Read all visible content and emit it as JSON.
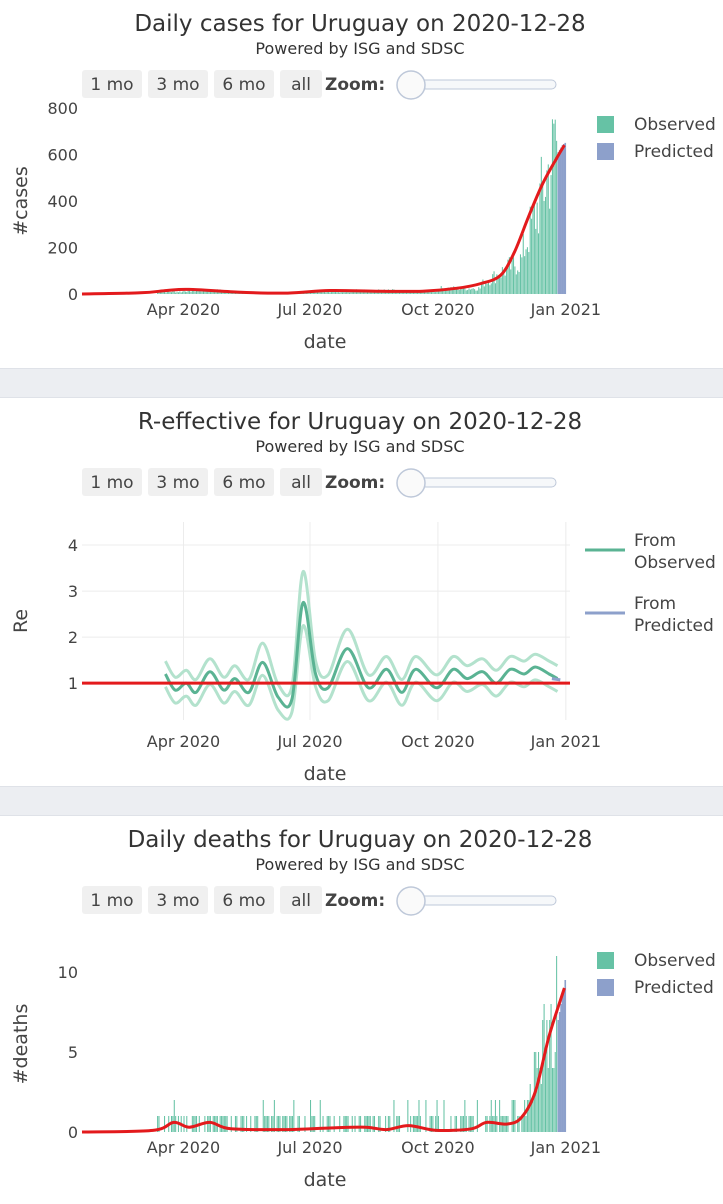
{
  "controls": {
    "buttons": [
      "1 mo",
      "3 mo",
      "6 mo",
      "all"
    ],
    "zoom_label": "Zoom:"
  },
  "colors": {
    "observed": "#66c2a5",
    "predicted": "#8da0cb",
    "fit": "#e31a1c",
    "band": "#b3e2cd",
    "re_line": "#5ab393",
    "grid": "#ececec",
    "button_bg": "#f0f0f0"
  },
  "chart_data": [
    {
      "type": "bar",
      "title": "Daily cases for Uruguay on 2020-12-28",
      "subtitle": "Powered by ISG and SDSC",
      "xlabel": "date",
      "ylabel": "#cases",
      "x_ticks": [
        "Apr 2020",
        "Jul 2020",
        "Oct 2020",
        "Jan 2021"
      ],
      "y_ticks": [
        "0",
        "200",
        "400",
        "600",
        "800"
      ],
      "xlim": [
        "2020-01-19",
        "2021-01-04"
      ],
      "ylim": [
        0,
        800
      ],
      "legend": {
        "position": "right",
        "entries": [
          "Observed",
          "Predicted"
        ]
      },
      "grid": false,
      "observed_months": [
        {
          "month": "2020-03",
          "avg": 10
        },
        {
          "month": "2020-04",
          "avg": 15
        },
        {
          "month": "2020-05",
          "avg": 6
        },
        {
          "month": "2020-06",
          "avg": 4
        },
        {
          "month": "2020-07",
          "avg": 12
        },
        {
          "month": "2020-08",
          "avg": 15
        },
        {
          "month": "2020-09",
          "avg": 12
        },
        {
          "month": "2020-10",
          "avg": 25
        },
        {
          "month": "2020-11",
          "avg": 75
        },
        {
          "month": "2020-12-first-half",
          "avg": 330
        },
        {
          "month": "2020-12-second-half",
          "avg": 600
        }
      ],
      "observed_peak": {
        "date": "2020-12-24",
        "value": 750
      },
      "predicted_range": {
        "from": "2020-12-26",
        "to": "2020-12-31",
        "values": [
          610,
          620,
          630,
          640,
          645,
          650
        ]
      },
      "fit_points": [
        {
          "date": "2020-01-19",
          "value": 0
        },
        {
          "date": "2020-03-01",
          "value": 5
        },
        {
          "date": "2020-03-20",
          "value": 15
        },
        {
          "date": "2020-04-05",
          "value": 20
        },
        {
          "date": "2020-05-10",
          "value": 8
        },
        {
          "date": "2020-06-15",
          "value": 4
        },
        {
          "date": "2020-07-15",
          "value": 15
        },
        {
          "date": "2020-08-20",
          "value": 12
        },
        {
          "date": "2020-09-20",
          "value": 12
        },
        {
          "date": "2020-10-15",
          "value": 25
        },
        {
          "date": "2020-11-01",
          "value": 45
        },
        {
          "date": "2020-11-15",
          "value": 80
        },
        {
          "date": "2020-11-25",
          "value": 180
        },
        {
          "date": "2020-12-05",
          "value": 330
        },
        {
          "date": "2020-12-15",
          "value": 470
        },
        {
          "date": "2020-12-25",
          "value": 580
        },
        {
          "date": "2020-12-31",
          "value": 640
        }
      ]
    },
    {
      "type": "line",
      "title": "R-effective for Uruguay on 2020-12-28",
      "subtitle": "Powered by ISG and SDSC",
      "xlabel": "date",
      "ylabel": "Re",
      "x_ticks": [
        "Apr 2020",
        "Jul 2020",
        "Oct 2020",
        "Jan 2021"
      ],
      "y_ticks": [
        "1",
        "2",
        "3",
        "4"
      ],
      "xlim": [
        "2020-01-19",
        "2021-01-04"
      ],
      "ylim": [
        0.2,
        4.5
      ],
      "reference_line": 1,
      "legend": {
        "position": "right",
        "entries": [
          "From Observed",
          "From Predicted"
        ]
      },
      "grid": true,
      "re_mean": [
        {
          "date": "2020-03-19",
          "value": 1.2
        },
        {
          "date": "2020-03-26",
          "value": 0.85
        },
        {
          "date": "2020-04-03",
          "value": 1.0
        },
        {
          "date": "2020-04-10",
          "value": 0.8
        },
        {
          "date": "2020-04-20",
          "value": 1.25
        },
        {
          "date": "2020-04-30",
          "value": 0.85
        },
        {
          "date": "2020-05-08",
          "value": 1.1
        },
        {
          "date": "2020-05-18",
          "value": 0.8
        },
        {
          "date": "2020-05-28",
          "value": 1.45
        },
        {
          "date": "2020-06-08",
          "value": 0.7
        },
        {
          "date": "2020-06-18",
          "value": 0.65
        },
        {
          "date": "2020-06-26",
          "value": 2.75
        },
        {
          "date": "2020-07-05",
          "value": 1.2
        },
        {
          "date": "2020-07-14",
          "value": 0.9
        },
        {
          "date": "2020-07-28",
          "value": 1.75
        },
        {
          "date": "2020-08-12",
          "value": 0.9
        },
        {
          "date": "2020-08-25",
          "value": 1.3
        },
        {
          "date": "2020-09-05",
          "value": 0.8
        },
        {
          "date": "2020-09-15",
          "value": 1.3
        },
        {
          "date": "2020-09-30",
          "value": 0.9
        },
        {
          "date": "2020-10-12",
          "value": 1.3
        },
        {
          "date": "2020-10-22",
          "value": 1.1
        },
        {
          "date": "2020-11-02",
          "value": 1.25
        },
        {
          "date": "2020-11-12",
          "value": 1.0
        },
        {
          "date": "2020-11-22",
          "value": 1.3
        },
        {
          "date": "2020-12-02",
          "value": 1.2
        },
        {
          "date": "2020-12-10",
          "value": 1.35
        },
        {
          "date": "2020-12-20",
          "value": 1.2
        },
        {
          "date": "2020-12-26",
          "value": 1.1
        }
      ],
      "band_half_width": 0.28,
      "predicted_segment": [
        {
          "date": "2020-12-22",
          "value": 1.1
        },
        {
          "date": "2020-12-28",
          "value": 1.07
        }
      ]
    },
    {
      "type": "bar",
      "title": "Daily deaths for Uruguay on 2020-12-28",
      "subtitle": "Powered by ISG and SDSC",
      "xlabel": "date",
      "ylabel": "#deaths",
      "x_ticks": [
        "Apr 2020",
        "Jul 2020",
        "Oct 2020",
        "Jan 2021"
      ],
      "y_ticks": [
        "0",
        "5",
        "10"
      ],
      "xlim": [
        "2020-01-19",
        "2021-01-04"
      ],
      "ylim": [
        0,
        11
      ],
      "legend": {
        "position": "right",
        "entries": [
          "Observed",
          "Predicted"
        ]
      },
      "grid": false,
      "observed_peak": {
        "date": "2020-12-25",
        "value": 11
      },
      "predicted_range": {
        "from": "2020-12-26",
        "to": "2020-12-31",
        "values": [
          7,
          7.5,
          8,
          8.5,
          9,
          9.5
        ]
      },
      "fit_points": [
        {
          "date": "2020-01-19",
          "value": 0
        },
        {
          "date": "2020-03-10",
          "value": 0.1
        },
        {
          "date": "2020-03-25",
          "value": 0.6
        },
        {
          "date": "2020-04-05",
          "value": 0.3
        },
        {
          "date": "2020-04-20",
          "value": 0.6
        },
        {
          "date": "2020-05-05",
          "value": 0.2
        },
        {
          "date": "2020-06-15",
          "value": 0.15
        },
        {
          "date": "2020-07-15",
          "value": 0.25
        },
        {
          "date": "2020-08-10",
          "value": 0.3
        },
        {
          "date": "2020-08-25",
          "value": 0.15
        },
        {
          "date": "2020-09-10",
          "value": 0.4
        },
        {
          "date": "2020-09-30",
          "value": 0.1
        },
        {
          "date": "2020-10-25",
          "value": 0.2
        },
        {
          "date": "2020-11-05",
          "value": 0.6
        },
        {
          "date": "2020-11-20",
          "value": 0.5
        },
        {
          "date": "2020-11-30",
          "value": 0.9
        },
        {
          "date": "2020-12-10",
          "value": 2.5
        },
        {
          "date": "2020-12-20",
          "value": 6
        },
        {
          "date": "2020-12-31",
          "value": 9
        }
      ]
    }
  ]
}
